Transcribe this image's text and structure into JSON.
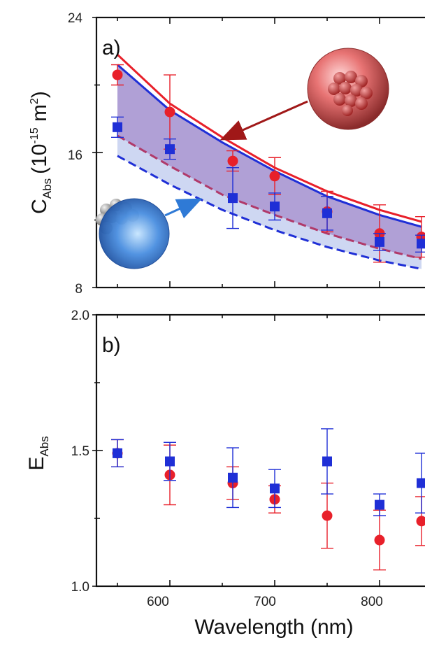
{
  "chart_data": [
    {
      "panel": "a)",
      "type": "scatter",
      "ylabel": {
        "main": "C",
        "sub": "Abs",
        "paren_open": "(10",
        "sup1": "-15",
        "unit": " m",
        "sup2": "2",
        "paren_close": ")"
      },
      "xlim": [
        530,
        850
      ],
      "ylim": [
        8,
        24
      ],
      "yticks": [
        8,
        16,
        24
      ],
      "xticks": [
        600,
        700,
        800
      ],
      "colors": {
        "red": "#e8202a",
        "blue": "#1f2fd6",
        "fill": "#9c88cc",
        "fill_light": "#c6d0f0"
      },
      "series": [
        {
          "marker": "circle",
          "color": "#e8202a",
          "x": [
            550,
            600,
            660,
            700,
            750,
            800,
            840
          ],
          "y": [
            20.6,
            18.4,
            15.5,
            14.6,
            12.5,
            11.2,
            11.0
          ],
          "err": [
            0.6,
            2.2,
            0.6,
            1.1,
            1.2,
            1.7,
            1.2
          ]
        },
        {
          "marker": "square",
          "color": "#1f2fd6",
          "x": [
            550,
            600,
            660,
            700,
            750,
            800,
            840
          ],
          "y": [
            17.5,
            16.2,
            13.3,
            12.8,
            12.4,
            10.7,
            10.6
          ],
          "err": [
            0.6,
            0.6,
            1.8,
            0.8,
            1.0,
            0.5,
            0.5
          ]
        }
      ],
      "curves": [
        {
          "style": "solid",
          "color": "#e8202a",
          "x": [
            550,
            600,
            650,
            700,
            750,
            800,
            840
          ],
          "y": [
            21.8,
            18.9,
            16.9,
            15.1,
            13.7,
            12.6,
            11.9
          ]
        },
        {
          "style": "solid",
          "color": "#1f2fd6",
          "x": [
            550,
            600,
            650,
            700,
            750,
            800,
            840
          ],
          "y": [
            21.2,
            18.5,
            16.6,
            14.9,
            13.4,
            12.3,
            11.6
          ]
        },
        {
          "style": "dashed",
          "color": "#b03a6a",
          "x": [
            550,
            600,
            650,
            700,
            750,
            800,
            840
          ],
          "y": [
            17.0,
            15.2,
            13.5,
            12.3,
            11.2,
            10.3,
            9.7
          ]
        },
        {
          "style": "dashed",
          "color": "#1f2fd6",
          "x": [
            550,
            600,
            650,
            700,
            750,
            800,
            840
          ],
          "y": [
            15.8,
            14.1,
            12.6,
            11.4,
            10.4,
            9.6,
            9.1
          ]
        }
      ]
    },
    {
      "panel": "b)",
      "type": "scatter",
      "ylabel": {
        "main": "E",
        "sub": "Abs"
      },
      "xlabel": "Wavelength (nm)",
      "xlim": [
        530,
        850
      ],
      "ylim": [
        1.0,
        2.0
      ],
      "yticks": [
        "1.0",
        "1.5",
        "2.0"
      ],
      "xticks": [
        600,
        700,
        800
      ],
      "series": [
        {
          "marker": "circle",
          "color": "#e8202a",
          "x": [
            550,
            600,
            660,
            700,
            750,
            800,
            840
          ],
          "y": [
            1.49,
            1.41,
            1.38,
            1.32,
            1.26,
            1.17,
            1.24
          ],
          "err": [
            0.05,
            0.11,
            0.06,
            0.05,
            0.12,
            0.11,
            0.09
          ]
        },
        {
          "marker": "square",
          "color": "#1f2fd6",
          "x": [
            550,
            600,
            660,
            700,
            750,
            800,
            840
          ],
          "y": [
            1.49,
            1.46,
            1.4,
            1.36,
            1.46,
            1.3,
            1.38
          ],
          "err": [
            0.05,
            0.07,
            0.11,
            0.07,
            0.12,
            0.04,
            0.11
          ]
        }
      ]
    }
  ]
}
